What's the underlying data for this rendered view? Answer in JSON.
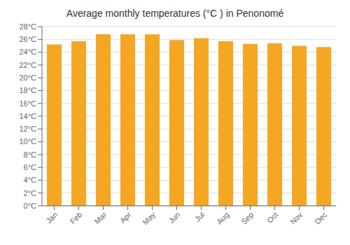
{
  "chart_data": {
    "type": "bar",
    "title": "Average monthly temperatures (°C ) in Penonomé",
    "categories": [
      "Jan",
      "Feb",
      "Mar",
      "Apr",
      "May",
      "Jun",
      "Jul",
      "Aug",
      "Sep",
      "Oct",
      "Nov",
      "Dec"
    ],
    "values": [
      25.2,
      25.7,
      26.8,
      26.8,
      26.8,
      25.9,
      26.2,
      25.7,
      25.3,
      25.4,
      25.0,
      24.8
    ],
    "color": "#F5A623",
    "ylim": [
      0,
      28
    ],
    "yticks": [
      {
        "value": 0,
        "label": "0°C"
      },
      {
        "value": 2,
        "label": "2°C"
      },
      {
        "value": 4,
        "label": "4°C"
      },
      {
        "value": 6,
        "label": "6°C"
      },
      {
        "value": 8,
        "label": "8°C"
      },
      {
        "value": 10,
        "label": "10°C"
      },
      {
        "value": 12,
        "label": "12°C"
      },
      {
        "value": 14,
        "label": "14°C"
      },
      {
        "value": 16,
        "label": "16°C"
      },
      {
        "value": 18,
        "label": "18°C"
      },
      {
        "value": 20,
        "label": "20°C"
      },
      {
        "value": 22,
        "label": "22°C"
      },
      {
        "value": 24,
        "label": "24°C"
      },
      {
        "value": 26,
        "label": "26°C"
      },
      {
        "value": 28,
        "label": "28°C"
      }
    ],
    "grid": true
  }
}
